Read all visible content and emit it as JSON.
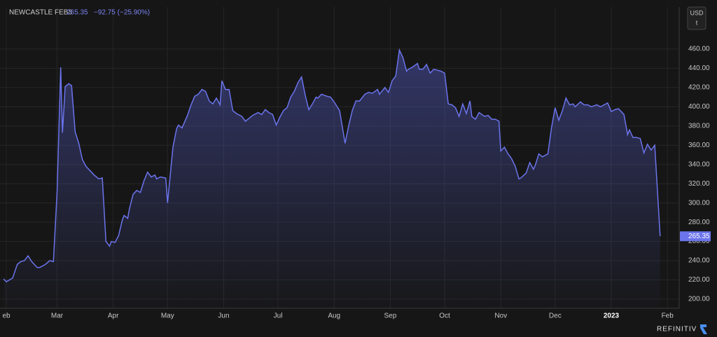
{
  "header": {
    "symbol": "NEWCASTLE FEB3",
    "price": "265.35",
    "change": "−92.75 (−25.90%)",
    "currency": "USD",
    "unit": "t",
    "brand": "REFINITIV"
  },
  "chart_data": {
    "type": "area",
    "x": [
      -1.5,
      0,
      3.5,
      6,
      8,
      10,
      12,
      14,
      17,
      18.5,
      21.5,
      24,
      26,
      28,
      30,
      31,
      32.5,
      34.5,
      36,
      38,
      40,
      42,
      44,
      47,
      48.5,
      51,
      53,
      55,
      57,
      58,
      60,
      62,
      64,
      65,
      67,
      68,
      70,
      72,
      74,
      76,
      78,
      80,
      82,
      83,
      85,
      88,
      89,
      92,
      94,
      95,
      97,
      100,
      102,
      104,
      106,
      108,
      110,
      112,
      114,
      116,
      118,
      119,
      121,
      123,
      125,
      127,
      130,
      132,
      134,
      136,
      139,
      141,
      143,
      145,
      147,
      149,
      151,
      153,
      155,
      157,
      159,
      161,
      163,
      165,
      167,
      169,
      171,
      172,
      174,
      177,
      179,
      181,
      184,
      187,
      189,
      191,
      193,
      195,
      198,
      200,
      202,
      205,
      206,
      209,
      211,
      213,
      215,
      217,
      219,
      221,
      222,
      224,
      227,
      228,
      230,
      232,
      234,
      236,
      238,
      240,
      242,
      244,
      246,
      248,
      250,
      252,
      254,
      256,
      257,
      259,
      261,
      264,
      266,
      268,
      270,
      272,
      273,
      275,
      277,
      279,
      281,
      283,
      284,
      287,
      289,
      291,
      292,
      294,
      296,
      299,
      301,
      303,
      305,
      307,
      309,
      311,
      313,
      314,
      317,
      319,
      321,
      323,
      326,
      328,
      330,
      332,
      334,
      336,
      338,
      341,
      343,
      344,
      346,
      348,
      350,
      352,
      354,
      356,
      358,
      361
    ],
    "values": [
      221,
      218,
      222,
      236,
      239,
      240,
      245,
      239,
      233,
      233,
      236,
      240,
      239,
      311,
      441,
      373,
      421,
      424,
      422,
      374,
      362,
      345,
      338,
      332,
      329,
      325,
      326,
      260,
      255,
      260,
      259,
      266,
      282,
      287,
      284,
      294,
      309,
      313,
      311,
      323,
      332,
      327,
      329,
      325,
      327,
      326,
      300,
      358,
      377,
      381,
      378,
      391,
      402,
      411,
      413,
      418,
      416,
      406,
      403,
      409,
      402,
      427,
      418,
      418,
      396,
      393,
      390,
      385,
      388,
      391,
      394,
      392,
      397,
      394,
      392,
      381,
      389,
      396,
      399,
      410,
      416,
      425,
      431,
      412,
      397,
      403,
      410,
      409,
      413,
      411,
      410,
      405,
      396,
      362,
      380,
      396,
      406,
      406,
      413,
      415,
      414,
      418,
      413,
      420,
      415,
      427,
      432,
      459,
      451,
      437,
      439,
      441,
      445,
      439,
      439,
      444,
      435,
      439,
      438,
      437,
      435,
      403,
      402,
      399,
      390,
      403,
      393,
      406,
      390,
      387,
      394,
      390,
      391,
      387,
      387,
      385,
      354,
      358,
      351,
      346,
      338,
      325,
      326,
      331,
      342,
      335,
      339,
      351,
      348,
      351,
      378,
      399,
      386,
      396,
      409,
      402,
      403,
      400,
      405,
      402,
      402,
      400,
      402,
      400,
      402,
      404,
      395,
      397,
      398,
      392,
      371,
      376,
      368,
      368,
      367,
      352,
      361,
      355,
      360,
      265.35
    ],
    "color": "#6b74ec",
    "xlim": [
      -3.5,
      371.5
    ],
    "ylim": [
      190.5,
      503.7
    ],
    "xticks": [
      {
        "value": 0,
        "label": "eb"
      },
      {
        "value": 28,
        "label": "Mar"
      },
      {
        "value": 59,
        "label": "Apr"
      },
      {
        "value": 89,
        "label": "May"
      },
      {
        "value": 120,
        "label": "Jun"
      },
      {
        "value": 150,
        "label": "Jul"
      },
      {
        "value": 181,
        "label": "Aug"
      },
      {
        "value": 212,
        "label": "Sep"
      },
      {
        "value": 242,
        "label": "Oct"
      },
      {
        "value": 273,
        "label": "Nov"
      },
      {
        "value": 303,
        "label": "Dec"
      },
      {
        "value": 334,
        "label": "2023"
      },
      {
        "value": 365,
        "label": "Feb"
      }
    ],
    "yticks": [
      {
        "value": 200,
        "label": "200.00"
      },
      {
        "value": 220,
        "label": "220.00"
      },
      {
        "value": 240,
        "label": "240.00"
      },
      {
        "value": 260,
        "label": "260.00"
      },
      {
        "value": 280,
        "label": "280.00"
      },
      {
        "value": 300,
        "label": "300.00"
      },
      {
        "value": 320,
        "label": "320.00"
      },
      {
        "value": 340,
        "label": "340.00"
      },
      {
        "value": 360,
        "label": "360.00"
      },
      {
        "value": 380,
        "label": "380.00"
      },
      {
        "value": 400,
        "label": "400.00"
      },
      {
        "value": 420,
        "label": "420.00"
      },
      {
        "value": 440,
        "label": "440.00"
      },
      {
        "value": 460,
        "label": "460.00"
      }
    ],
    "grid": true
  }
}
